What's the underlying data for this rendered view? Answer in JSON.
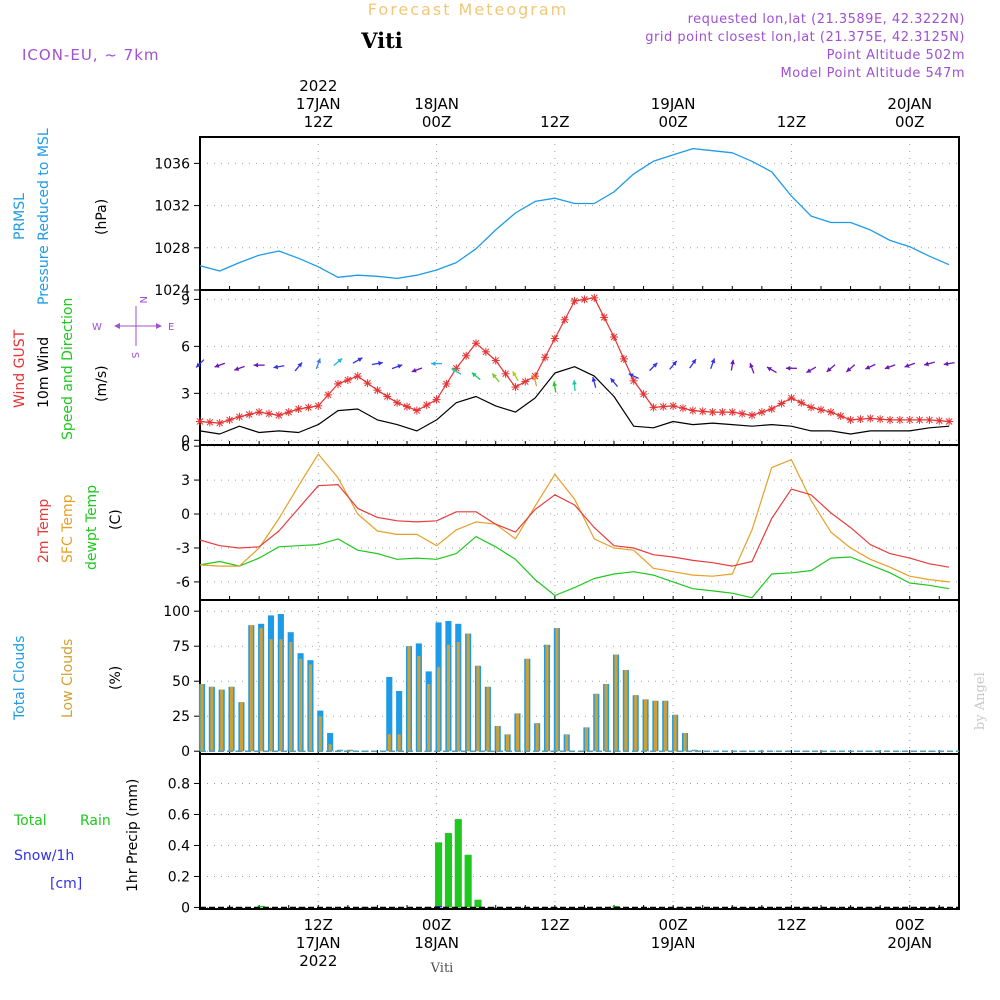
{
  "header": {
    "title": "Forecast Meteogram",
    "location": "Viti",
    "model": "ICON-EU, ~ 7km",
    "requested": "requested lon,lat (21.3589E, 42.3222N)",
    "grid_point": "grid point closest lon,lat (21.375E, 42.3125N)",
    "point_altitude": "Point Altitude 502m",
    "model_altitude": "Model Point Altitude 547m",
    "footer_location": "Viti",
    "watermark": "by Angel"
  },
  "colors": {
    "pressure": "#1E9BE6",
    "gust": "#E63232",
    "wind": "#000000",
    "temp": "#E63C3C",
    "sfc": "#E6A028",
    "dewpt": "#1EC81E",
    "total_clouds": "#1E9BE6",
    "low_clouds": "#D2A032",
    "rain": "#1EC81E",
    "snow": "#3232E6",
    "purple": "#A050D2",
    "title": "#F0C878"
  },
  "time_axis": {
    "top": [
      {
        "hour": 12,
        "lines": [
          "2022",
          "17JAN",
          "12Z"
        ]
      },
      {
        "hour": 24,
        "lines": [
          "18JAN",
          "00Z"
        ]
      },
      {
        "hour": 36,
        "lines": [
          "12Z"
        ]
      },
      {
        "hour": 48,
        "lines": [
          "19JAN",
          "00Z"
        ]
      },
      {
        "hour": 60,
        "lines": [
          "12Z"
        ]
      },
      {
        "hour": 72,
        "lines": [
          "20JAN",
          "00Z"
        ]
      }
    ],
    "bottom": [
      {
        "hour": 12,
        "lines": [
          "12Z",
          "17JAN",
          "2022"
        ]
      },
      {
        "hour": 24,
        "lines": [
          "00Z",
          "18JAN"
        ]
      },
      {
        "hour": 36,
        "lines": [
          "12Z"
        ]
      },
      {
        "hour": 48,
        "lines": [
          "00Z",
          "19JAN"
        ]
      },
      {
        "hour": 60,
        "lines": [
          "12Z"
        ]
      },
      {
        "hour": 72,
        "lines": [
          "00Z",
          "20JAN"
        ]
      }
    ]
  },
  "panels": {
    "pressure": {
      "label1": "PRMSL",
      "label2": "Pressure Reduced to MSL",
      "unit": "(hPa)"
    },
    "wind": {
      "label1": "Wind GUST",
      "label2": "10m Wind",
      "label3": "Speed and Direction",
      "unit": "(m/s)",
      "compass_n": "N",
      "compass_s": "S",
      "compass_w": "W",
      "compass_e": "E"
    },
    "temp": {
      "label1": "2m Temp",
      "label2": "SFC Temp",
      "label3": "dewpt Temp",
      "unit": "(C)"
    },
    "clouds": {
      "label1": "Total Clouds",
      "label2": "Low Clouds",
      "unit": "(%)"
    },
    "precip": {
      "label1": "Total",
      "label1b": "Rain",
      "label2": "Snow/1h",
      "label3": "[cm]",
      "unit": "1hr Precip (mm)"
    }
  },
  "chart_data": [
    {
      "type": "line",
      "name": "pressure",
      "title": "PRMSL Pressure Reduced to MSL",
      "ylabel": "hPa",
      "ylim": [
        1024,
        1038.5
      ],
      "yticks": [
        1024,
        1028,
        1032,
        1036
      ],
      "x_hours": [
        0,
        2,
        4,
        6,
        8,
        10,
        12,
        14,
        16,
        18,
        20,
        22,
        24,
        26,
        28,
        30,
        32,
        34,
        36,
        38,
        40,
        42,
        44,
        46,
        48,
        50,
        52,
        54,
        56,
        58,
        60,
        62,
        64,
        66,
        68,
        70,
        72,
        74,
        76
      ],
      "series": [
        {
          "name": "PRMSL",
          "values": [
            1026.3,
            1025.8,
            1026.6,
            1027.3,
            1027.7,
            1027.0,
            1026.2,
            1025.2,
            1025.4,
            1025.3,
            1025.1,
            1025.4,
            1025.9,
            1026.6,
            1027.9,
            1029.7,
            1031.3,
            1032.4,
            1032.7,
            1032.2,
            1032.2,
            1033.3,
            1035.0,
            1036.2,
            1036.8,
            1037.4,
            1037.2,
            1037.0,
            1036.2,
            1035.2,
            1032.9,
            1031.0,
            1030.4,
            1030.4,
            1029.7,
            1028.7,
            1028.1,
            1027.2,
            1026.4
          ]
        }
      ]
    },
    {
      "type": "line",
      "name": "wind",
      "title": "Wind GUST / 10m Wind Speed and Direction",
      "ylabel": "m/s",
      "ylim": [
        -0.3,
        9.6
      ],
      "yticks": [
        0,
        3,
        6,
        9
      ],
      "x_hours": [
        0,
        2,
        4,
        6,
        8,
        10,
        12,
        14,
        16,
        18,
        20,
        22,
        24,
        26,
        28,
        30,
        32,
        34,
        36,
        38,
        40,
        42,
        44,
        46,
        48,
        50,
        52,
        54,
        56,
        58,
        60,
        62,
        64,
        66,
        68,
        70,
        72,
        74,
        76
      ],
      "series": [
        {
          "name": "Wind GUST",
          "values": [
            1.2,
            1.1,
            1.5,
            1.8,
            1.6,
            2.0,
            2.2,
            3.6,
            4.1,
            3.2,
            2.4,
            1.9,
            2.6,
            4.6,
            6.2,
            5.1,
            3.4,
            4.1,
            6.5,
            8.9,
            9.1,
            6.6,
            3.8,
            2.1,
            2.2,
            1.9,
            1.8,
            1.8,
            1.6,
            2.0,
            2.7,
            2.1,
            1.8,
            1.3,
            1.4,
            1.3,
            1.3,
            1.3,
            1.2
          ]
        },
        {
          "name": "10m Wind",
          "values": [
            0.6,
            0.4,
            0.9,
            0.5,
            0.6,
            0.5,
            1.0,
            1.9,
            2.0,
            1.3,
            1.0,
            0.6,
            1.3,
            2.4,
            2.8,
            2.2,
            1.8,
            2.7,
            4.3,
            4.7,
            4.1,
            2.8,
            0.9,
            0.8,
            1.2,
            1.0,
            1.1,
            1.0,
            0.9,
            1.0,
            0.9,
            0.6,
            0.6,
            0.4,
            0.6,
            0.6,
            0.6,
            0.8,
            0.9
          ]
        }
      ],
      "arrow_y": [
        4.9,
        4.8,
        4.6,
        4.8,
        4.7,
        4.7,
        4.9,
        5.0,
        5.1,
        4.9,
        4.7,
        4.5,
        4.9,
        4.4,
        4.1,
        4.0,
        4.1,
        3.8,
        3.4,
        3.5,
        3.7,
        3.7,
        4.1,
        4.7,
        4.8,
        4.9,
        4.9,
        4.8,
        4.6,
        4.5,
        4.6,
        4.5,
        4.6,
        4.6,
        4.7,
        4.7,
        4.8,
        4.9,
        4.9
      ],
      "arrow_dir": [
        225,
        250,
        250,
        270,
        260,
        40,
        20,
        50,
        60,
        80,
        70,
        250,
        270,
        300,
        310,
        320,
        330,
        345,
        350,
        355,
        345,
        320,
        295,
        45,
        40,
        35,
        20,
        10,
        340,
        300,
        270,
        240,
        230,
        230,
        245,
        250,
        250,
        255,
        260
      ],
      "arrow_colors": [
        "#3232E6",
        "#6E14B4",
        "#6E14B4",
        "#6E14B4",
        "#3232E6",
        "#3232E6",
        "#3C78E6",
        "#1EB4E6",
        "#3232E6",
        "#3232E6",
        "#3232E6",
        "#6E14B4",
        "#1EB4E6",
        "#1EC8A0",
        "#1EC864",
        "#78C81E",
        "#B4C81E",
        "#E6A028",
        "#1EC81E",
        "#1EC8A0",
        "#3232E6",
        "#3232E6",
        "#3232E6",
        "#3232E6",
        "#3232E6",
        "#3232E6",
        "#3232E6",
        "#6E14B4",
        "#6E14B4",
        "#6E14B4",
        "#6E14B4",
        "#6E14B4",
        "#6E14B4",
        "#6E14B4",
        "#6E14B4",
        "#6E14B4",
        "#6E14B4",
        "#6E14B4",
        "#6E14B4"
      ]
    },
    {
      "type": "line",
      "name": "temperature",
      "title": "2m Temp / SFC Temp / dewpt Temp",
      "ylabel": "C",
      "ylim": [
        -7.6,
        6.1
      ],
      "yticks": [
        -6,
        -3,
        0,
        3,
        6
      ],
      "x_hours": [
        0,
        2,
        4,
        6,
        8,
        10,
        12,
        14,
        16,
        18,
        20,
        22,
        24,
        26,
        28,
        30,
        32,
        34,
        36,
        38,
        40,
        42,
        44,
        46,
        48,
        50,
        52,
        54,
        56,
        58,
        60,
        62,
        64,
        66,
        68,
        70,
        72,
        74,
        76
      ],
      "series": [
        {
          "name": "2m Temp",
          "values": [
            -2.3,
            -2.8,
            -3.0,
            -2.9,
            -1.5,
            0.5,
            2.5,
            2.6,
            0.5,
            -0.3,
            -0.6,
            -0.7,
            -0.6,
            0.2,
            0.2,
            -0.9,
            -1.6,
            0.4,
            1.7,
            0.8,
            -1.2,
            -2.8,
            -3.0,
            -3.6,
            -3.8,
            -4.1,
            -4.3,
            -4.6,
            -4.2,
            -0.4,
            2.2,
            1.7,
            0.1,
            -1.2,
            -2.7,
            -3.5,
            -3.9,
            -4.4,
            -4.7
          ]
        },
        {
          "name": "SFC Temp",
          "values": [
            -4.5,
            -4.6,
            -4.6,
            -3.0,
            -0.4,
            2.5,
            5.3,
            3.2,
            0.0,
            -1.5,
            -1.8,
            -1.8,
            -2.8,
            -1.4,
            -0.7,
            -0.9,
            -2.2,
            0.7,
            3.5,
            1.3,
            -2.2,
            -3.0,
            -3.2,
            -4.8,
            -5.1,
            -5.4,
            -5.5,
            -5.3,
            -1.4,
            4.1,
            4.8,
            1.2,
            -1.6,
            -3.0,
            -4.0,
            -4.7,
            -5.5,
            -5.8,
            -6.0
          ]
        },
        {
          "name": "dewpt Temp",
          "values": [
            -4.5,
            -4.2,
            -4.6,
            -3.9,
            -2.9,
            -2.8,
            -2.7,
            -2.2,
            -3.2,
            -3.5,
            -4.0,
            -3.9,
            -4.0,
            -3.5,
            -2.0,
            -2.9,
            -4.0,
            -5.8,
            -7.2,
            -6.5,
            -5.7,
            -5.3,
            -5.1,
            -5.4,
            -6.0,
            -6.6,
            -6.8,
            -7.0,
            -7.4,
            -5.3,
            -5.2,
            -5.0,
            -3.9,
            -3.8,
            -4.5,
            -5.2,
            -6.1,
            -6.3,
            -6.6
          ]
        }
      ]
    },
    {
      "type": "bar",
      "name": "clouds",
      "title": "Total Clouds / Low Clouds",
      "ylabel": "%",
      "ylim": [
        -2,
        108
      ],
      "yticks": [
        0,
        25,
        50,
        75,
        100
      ],
      "x_hours": [
        0,
        1,
        2,
        3,
        4,
        5,
        6,
        7,
        8,
        9,
        10,
        11,
        12,
        13,
        14,
        15,
        16,
        17,
        18,
        19,
        20,
        21,
        22,
        23,
        24,
        25,
        26,
        27,
        28,
        29,
        30,
        31,
        32,
        33,
        34,
        35,
        36,
        37,
        38,
        39,
        40,
        41,
        42,
        43,
        44,
        45,
        46,
        47,
        48,
        49,
        50,
        51,
        52,
        53,
        54,
        55,
        56,
        57,
        58,
        59,
        60,
        61,
        62,
        63,
        64,
        65,
        66,
        67,
        68,
        69,
        70,
        71,
        72,
        73,
        74,
        75,
        76
      ],
      "series": [
        {
          "name": "Total Clouds",
          "values": [
            48,
            46,
            44,
            46,
            35,
            90,
            91,
            97,
            98,
            85,
            70,
            65,
            29,
            13,
            1,
            1,
            0,
            0,
            0,
            53,
            43,
            75,
            77,
            57,
            92,
            93,
            91,
            84,
            61,
            46,
            18,
            12,
            27,
            66,
            20,
            76,
            88,
            12,
            0,
            17,
            41,
            48,
            69,
            58,
            40,
            37,
            36,
            36,
            26,
            13,
            1,
            0,
            0,
            0,
            0,
            0,
            0,
            0,
            0,
            0,
            0,
            0,
            0,
            0,
            0,
            0,
            0,
            0,
            0,
            0,
            0,
            0,
            0,
            0,
            0,
            0,
            0
          ]
        },
        {
          "name": "Low Clouds",
          "values": [
            48,
            46,
            44,
            46,
            35,
            90,
            88,
            80,
            80,
            78,
            66,
            62,
            25,
            5,
            1,
            1,
            0,
            0,
            0,
            12,
            12,
            75,
            68,
            48,
            60,
            76,
            78,
            84,
            61,
            46,
            18,
            12,
            27,
            66,
            20,
            76,
            88,
            12,
            0,
            17,
            41,
            48,
            69,
            58,
            40,
            37,
            36,
            36,
            26,
            13,
            1,
            0,
            0,
            0,
            0,
            0,
            0,
            0,
            0,
            0,
            0,
            0,
            0,
            0,
            0,
            0,
            0,
            0,
            0,
            0,
            0,
            0,
            0,
            0,
            0,
            0,
            0
          ]
        }
      ]
    },
    {
      "type": "bar",
      "name": "precip",
      "title": "1hr Precip (mm)",
      "ylabel": "mm",
      "ylim": [
        -0.01,
        0.99
      ],
      "yticks": [
        0,
        0.2,
        0.4,
        0.6,
        0.8
      ],
      "x_hours": [
        6,
        24,
        25,
        26,
        27,
        28,
        42
      ],
      "series": [
        {
          "name": "Total Rain",
          "values": [
            0.01,
            0.42,
            0.48,
            0.57,
            0.34,
            0.05,
            0.01
          ]
        },
        {
          "name": "Snow/1h",
          "values": [
            0,
            0.01,
            0,
            0,
            0,
            0,
            0
          ]
        }
      ]
    }
  ]
}
